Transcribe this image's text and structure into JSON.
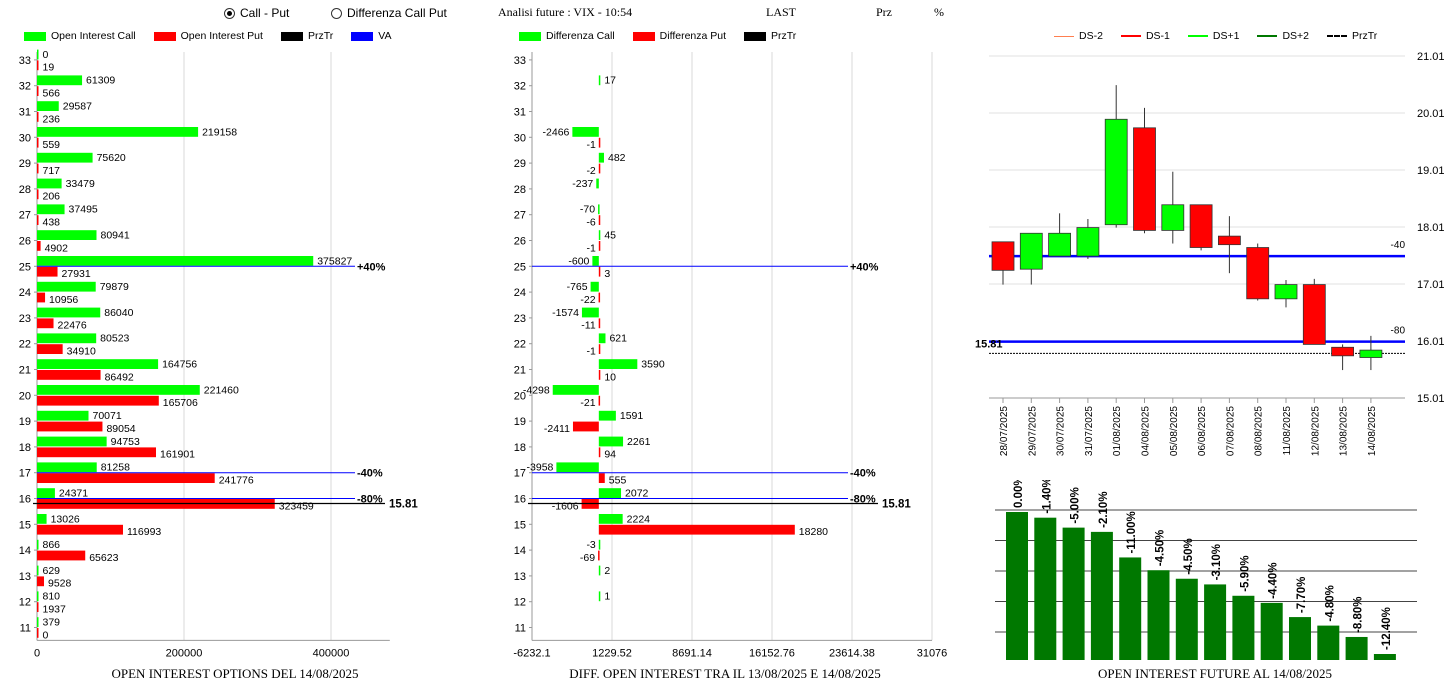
{
  "controls": {
    "radio_call_put": "Call - Put",
    "radio_diff": "Differenza Call Put",
    "title": "Analisi future : VIX - 10:54",
    "last_label": "LAST",
    "prz_label": "Prz",
    "pct_label": "%"
  },
  "colors": {
    "green": "#00ff00",
    "red": "#ff0000",
    "blue": "#0000ff",
    "dark_green": "#007800"
  },
  "legend1": {
    "call": "Open Interest Call",
    "put": "Open Interest Put",
    "prztr": "PrzTr",
    "va": "VA"
  },
  "legend2": {
    "call": "Differenza Call",
    "put": "Differenza Put",
    "prztr": "PrzTr"
  },
  "legend3": {
    "ds_2": "DS-2",
    "ds_1": "DS-1",
    "ds1": "DS+1",
    "ds2": "DS+2",
    "prztr": "PrzTr"
  },
  "footers": {
    "left": "OPEN INTEREST OPTIONS DEL 14/08/2025",
    "mid": "DIFF. OPEN INTEREST TRA IL 13/08/2025 E 14/08/2025",
    "right": "OPEN INTEREST FUTURE AL 14/08/2025"
  },
  "chart_data": [
    {
      "type": "bar",
      "orientation": "horizontal",
      "strikes": [
        33,
        32,
        31,
        30,
        29,
        28,
        27,
        26,
        25,
        24,
        23,
        22,
        21,
        20,
        19,
        18,
        17,
        16,
        15,
        14,
        13,
        12,
        11
      ],
      "series": [
        {
          "name": "Open Interest Call",
          "values": [
            0,
            61309,
            29587,
            219158,
            75620,
            33479,
            37495,
            80941,
            375827,
            79879,
            86040,
            80523,
            164756,
            221460,
            70071,
            94753,
            81258,
            24371,
            13026,
            866,
            629,
            810,
            379
          ]
        },
        {
          "name": "Open Interest Put",
          "values": [
            19,
            566,
            236,
            559,
            717,
            206,
            438,
            4902,
            27931,
            10956,
            22476,
            34910,
            86492,
            165706,
            89054,
            161901,
            241776,
            323459,
            116993,
            65623,
            9528,
            1937,
            0
          ]
        }
      ],
      "xlim": [
        0,
        480000
      ],
      "xticks": [
        "0",
        "200000",
        "400000"
      ],
      "lines": [
        {
          "strike": 25,
          "label": "+40%"
        },
        {
          "strike": 17,
          "label": "-40%"
        },
        {
          "strike": 16,
          "label": "-80%"
        },
        {
          "strike": 16,
          "label": "15.81"
        }
      ]
    },
    {
      "type": "bar",
      "orientation": "horizontal",
      "strikes": [
        33,
        32,
        31,
        30,
        29,
        28,
        27,
        26,
        25,
        24,
        23,
        22,
        21,
        20,
        19,
        18,
        17,
        16,
        15,
        14,
        13,
        12,
        11
      ],
      "series": [
        {
          "name": "Differenza Call",
          "values": [
            null,
            17,
            null,
            -2466,
            482,
            -237,
            -70,
            45,
            -600,
            -765,
            -1574,
            621,
            3590,
            -4298,
            1591,
            2261,
            -3958,
            2072,
            2224,
            -3,
            2,
            1,
            null
          ]
        },
        {
          "name": "Differenza Put",
          "values": [
            null,
            null,
            null,
            -1,
            -2,
            null,
            -6,
            -1,
            3,
            -22,
            -11,
            -1,
            10,
            -21,
            -2411,
            94,
            555,
            -1606,
            18280,
            -69,
            null,
            null,
            null
          ]
        }
      ],
      "xlim": [
        -6232.1,
        31076
      ],
      "xticks": [
        "-6232.1",
        "1229.52",
        "8691.14",
        "16152.76",
        "23614.38",
        "31076"
      ],
      "lines": [
        {
          "strike": 25,
          "label": "+40%"
        },
        {
          "strike": 17,
          "label": "-40%"
        },
        {
          "strike": 16,
          "label": "-80%"
        },
        {
          "strike": 16,
          "label": "15.81"
        }
      ]
    },
    {
      "type": "candlestick",
      "dates": [
        "28/07/2025",
        "29/07/2025",
        "30/07/2025",
        "31/07/2025",
        "01/08/2025",
        "04/08/2025",
        "05/08/2025",
        "06/08/2025",
        "07/08/2025",
        "08/08/2025",
        "11/08/2025",
        "12/08/2025",
        "13/08/2025",
        "14/08/2025"
      ],
      "candles": [
        {
          "o": 17.75,
          "c": 17.25,
          "h": 17.75,
          "l": 17.0
        },
        {
          "o": 17.27,
          "c": 17.9,
          "h": 17.9,
          "l": 17.0
        },
        {
          "o": 17.5,
          "c": 17.9,
          "h": 18.25,
          "l": 17.5
        },
        {
          "o": 17.5,
          "c": 18.0,
          "h": 18.15,
          "l": 17.45
        },
        {
          "o": 18.05,
          "c": 19.9,
          "h": 20.5,
          "l": 18.0
        },
        {
          "o": 19.75,
          "c": 17.95,
          "h": 20.1,
          "l": 17.9
        },
        {
          "o": 17.95,
          "c": 18.4,
          "h": 18.98,
          "l": 17.72
        },
        {
          "o": 18.4,
          "c": 17.65,
          "h": 18.4,
          "l": 17.6
        },
        {
          "o": 17.85,
          "c": 17.7,
          "h": 18.2,
          "l": 17.2
        },
        {
          "o": 17.65,
          "c": 16.75,
          "h": 17.72,
          "l": 16.72
        },
        {
          "o": 16.75,
          "c": 17.0,
          "h": 17.08,
          "l": 16.6
        },
        {
          "o": 17.0,
          "c": 15.95,
          "h": 17.1,
          "l": 15.95
        },
        {
          "o": 15.9,
          "c": 15.75,
          "h": 15.95,
          "l": 15.5
        },
        {
          "o": 15.72,
          "c": 15.85,
          "h": 16.1,
          "l": 15.5
        }
      ],
      "ylim": [
        15.01,
        21.01
      ],
      "yticks": [
        "21.01",
        "20.01",
        "19.01",
        "18.01",
        "17.01",
        "16.01",
        "15.01"
      ],
      "hlines": [
        {
          "value": 17.5,
          "label": "-40"
        },
        {
          "value": 16.0,
          "label": "-80"
        }
      ],
      "prztr": 15.81,
      "prztr_label": "15.81"
    },
    {
      "type": "bar",
      "categories": [
        "28/07/2025",
        "29/07/2025",
        "30/07/2025",
        "31/07/2025",
        "01/08/2025",
        "04/08/2025",
        "05/08/2025",
        "06/08/2025",
        "07/08/2025",
        "08/08/2025",
        "11/08/2025",
        "12/08/2025",
        "13/08/2025",
        "14/08/2025"
      ],
      "values": [
        0,
        -1.4,
        -5.0,
        -2.1,
        -11.0,
        -4.5,
        -4.5,
        -3.1,
        -5.9,
        -4.4,
        -7.7,
        -4.8,
        -8.8,
        -12.4
      ],
      "labels": [
        "0.00%",
        "-1.40%",
        "-5.00%",
        "-2.10%",
        "-11.00%",
        "-4.50%",
        "-4.50%",
        "-3.10%",
        "-5.90%",
        "-4.40%",
        "-7.70%",
        "-4.80%",
        "-8.80%",
        "-12.40%"
      ],
      "heights": [
        1.0,
        0.96,
        0.89,
        0.86,
        0.68,
        0.59,
        0.53,
        0.49,
        0.41,
        0.36,
        0.26,
        0.2,
        0.12,
        0.0
      ]
    }
  ]
}
